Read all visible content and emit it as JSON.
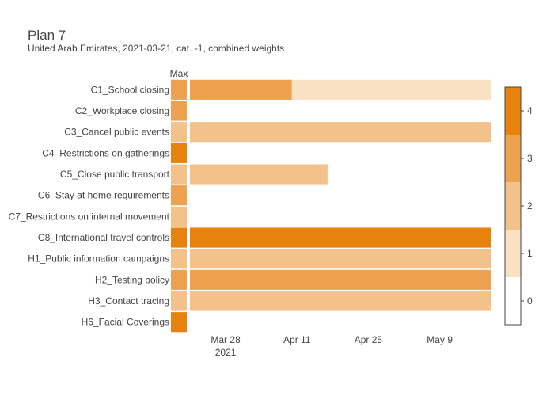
{
  "chart_data": {
    "type": "heatmap",
    "title": "Plan 7",
    "subtitle": "United Arab Emirates, 2021-03-21, cat. -1, combined weights",
    "max_column_label": "Max",
    "rows": [
      "C1_School closing",
      "C2_Workplace closing",
      "C3_Cancel public events",
      "C4_Restrictions on gatherings",
      "C5_Close public transport",
      "C6_Stay at home requirements",
      "C7_Restrictions on internal movement",
      "C8_International travel controls",
      "H1_Public information campaigns",
      "H2_Testing policy",
      "H3_Contact tracing",
      "H6_Facial Coverings"
    ],
    "max_values": [
      3,
      3,
      2,
      4,
      2,
      3,
      2,
      4,
      2,
      3,
      2,
      4
    ],
    "segments": [
      {
        "row": "C1_School closing",
        "start": "2021-03-21",
        "end": "2021-04-10",
        "value": 3
      },
      {
        "row": "C1_School closing",
        "start": "2021-04-10",
        "end": "2021-05-19",
        "value": 1
      },
      {
        "row": "C3_Cancel public events",
        "start": "2021-03-21",
        "end": "2021-05-19",
        "value": 2
      },
      {
        "row": "C5_Close public transport",
        "start": "2021-03-21",
        "end": "2021-04-17",
        "value": 2
      },
      {
        "row": "C8_International travel controls",
        "start": "2021-03-21",
        "end": "2021-05-19",
        "value": 4
      },
      {
        "row": "H1_Public information campaigns",
        "start": "2021-03-21",
        "end": "2021-05-19",
        "value": 2
      },
      {
        "row": "H2_Testing policy",
        "start": "2021-03-21",
        "end": "2021-05-19",
        "value": 3
      },
      {
        "row": "H3_Contact tracing",
        "start": "2021-03-21",
        "end": "2021-05-19",
        "value": 2
      }
    ],
    "x_range": [
      "2021-03-21",
      "2021-05-19"
    ],
    "x_ticks": [
      {
        "date": "2021-03-28",
        "label": "Mar 28",
        "sublabel": "2021"
      },
      {
        "date": "2021-04-11",
        "label": "Apr 11",
        "sublabel": ""
      },
      {
        "date": "2021-04-25",
        "label": "Apr 25",
        "sublabel": ""
      },
      {
        "date": "2021-05-09",
        "label": "May 9",
        "sublabel": ""
      }
    ],
    "colorscale": [
      {
        "value": 0,
        "color": "#ffffff"
      },
      {
        "value": 1,
        "color": "#fbe1c4"
      },
      {
        "value": 2,
        "color": "#f3c28a"
      },
      {
        "value": 3,
        "color": "#eea24f"
      },
      {
        "value": 4,
        "color": "#e8820f"
      }
    ],
    "colorbar_ticks": [
      "0",
      "1",
      "2",
      "3",
      "4"
    ],
    "grid": false,
    "legend": "right"
  }
}
